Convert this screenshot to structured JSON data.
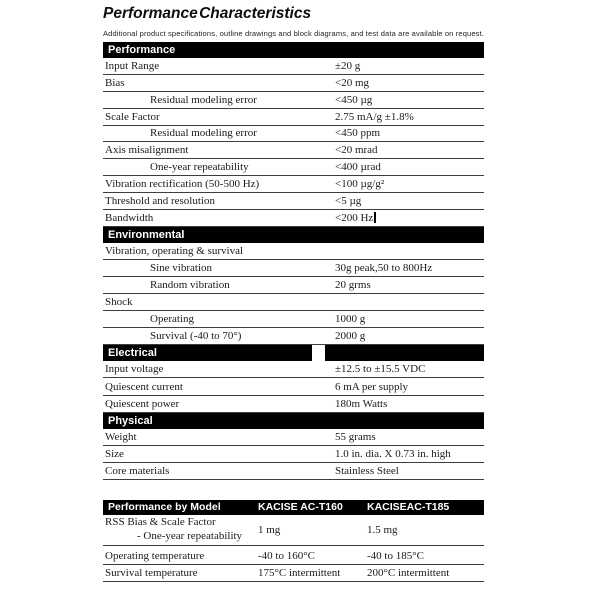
{
  "page": {
    "title": "Performance Characteristics",
    "subtitle": "Additional product specifications, outline drawings and block diagrams, and test data are available on request."
  },
  "colors": {
    "section_bar_bg": "#000000",
    "section_bar_text": "#ffffff",
    "body_text": "#1a1a1a",
    "rule": "#3d3d3d"
  },
  "spec_table": {
    "sections": [
      {
        "header": "Performance",
        "header_gap": false,
        "rows": [
          {
            "label": "Input Range",
            "value": "±20 g",
            "indent": false,
            "cursor": false
          },
          {
            "label": "Bias",
            "value": "<20 mg",
            "indent": false,
            "cursor": false
          },
          {
            "label": "Residual modeling error",
            "value": "<450 µg",
            "indent": true,
            "cursor": false
          },
          {
            "label": "Scale Factor",
            "value": "2.75 mA/g ±1.8%",
            "indent": false,
            "cursor": false
          },
          {
            "label": "Residual modeling error",
            "value": "<450 ppm",
            "indent": true,
            "cursor": false
          },
          {
            "label": "Axis misalignment",
            "value": "<20 mrad",
            "indent": false,
            "cursor": false
          },
          {
            "label": "One-year repeatability",
            "value": "<400 µrad",
            "indent": true,
            "cursor": false
          },
          {
            "label": "Vibration rectification (50-500 Hz)",
            "value": "<100 µg/g²",
            "indent": false,
            "cursor": false
          },
          {
            "label": "Threshold and resolution",
            "value": "<5 µg",
            "indent": false,
            "cursor": false
          },
          {
            "label": "Bandwidth",
            "value": "<200 Hz",
            "indent": false,
            "cursor": true
          }
        ]
      },
      {
        "header": "Environmental",
        "header_gap": false,
        "rows": [
          {
            "label": "Vibration, operating & survival",
            "value": "",
            "indent": false,
            "cursor": false
          },
          {
            "label": "Sine vibration",
            "value": "30g peak,50 to 800Hz",
            "indent": true,
            "cursor": false
          },
          {
            "label": "Random vibration",
            "value": "20 grms",
            "indent": true,
            "cursor": false
          },
          {
            "label": "Shock",
            "value": "",
            "indent": false,
            "cursor": false
          },
          {
            "label": "Operating",
            "value": "1000 g",
            "indent": true,
            "cursor": false
          },
          {
            "label": "Survival (-40 to 70°)",
            "value": "2000 g",
            "indent": true,
            "cursor": false
          }
        ]
      },
      {
        "header": "Electrical",
        "header_gap": true,
        "rows": [
          {
            "label": "Input voltage",
            "value": "±12.5 to ±15.5 VDC",
            "indent": false,
            "cursor": false
          },
          {
            "label": "Quiescent current",
            "value": "6 mA per supply",
            "indent": false,
            "cursor": false
          },
          {
            "label": "Quiescent power",
            "value": "180m Watts",
            "indent": false,
            "cursor": false
          }
        ]
      },
      {
        "header": "Physical",
        "header_gap": false,
        "rows": [
          {
            "label": "Weight",
            "value": "55 grams",
            "indent": false,
            "cursor": false
          },
          {
            "label": "Size",
            "value": "1.0 in. dia. X 0.73 in. high",
            "indent": false,
            "cursor": false
          },
          {
            "label": "Core materials",
            "value": "Stainless Steel",
            "indent": false,
            "cursor": false
          }
        ]
      }
    ]
  },
  "model_table": {
    "header": {
      "col1": "Performance by Model",
      "col2": "KACISE AC-T160",
      "col3": "KACISEAC-T185"
    },
    "rows": [
      {
        "label_line1": "RSS Bias & Scale Factor",
        "label_line2": "- One-year repeatability",
        "col2": "1 mg",
        "col3": "1.5 mg"
      },
      {
        "label_line1": "Operating temperature",
        "label_line2": "",
        "col2": "-40 to 160°C",
        "col3": "-40 to 185°C"
      },
      {
        "label_line1": "Survival temperature",
        "label_line2": "",
        "col2": "175°C intermittent",
        "col3": "200°C intermittent"
      }
    ]
  }
}
